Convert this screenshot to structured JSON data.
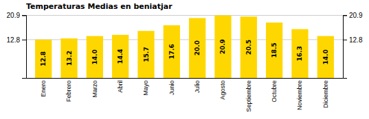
{
  "chart_data": {
    "type": "bar",
    "title": "Temperaturas Medias en beniatjar",
    "categories": [
      "Enero",
      "Febrero",
      "Marzo",
      "Abril",
      "Mayo",
      "Junio",
      "Julio",
      "Agosto",
      "Septiembre",
      "Octubre",
      "Noviembre",
      "Diciembre"
    ],
    "values": [
      12.8,
      13.2,
      14.0,
      14.4,
      15.7,
      17.6,
      20.0,
      20.9,
      20.5,
      18.5,
      16.3,
      14.0
    ],
    "value_labels": [
      "12.8",
      "13.2",
      "14.0",
      "14.4",
      "15.7",
      "17.6",
      "20.0",
      "20.9",
      "20.5",
      "18.5",
      "16.3",
      "14.0"
    ],
    "data_labels": true,
    "color": "#FFD700",
    "ylim": [
      0,
      21.0045
    ],
    "yticks": [
      12.8,
      20.9
    ],
    "y2lim": [
      0,
      21.0045
    ],
    "y2ticks": [
      12.8,
      20.9
    ],
    "grid": true
  }
}
